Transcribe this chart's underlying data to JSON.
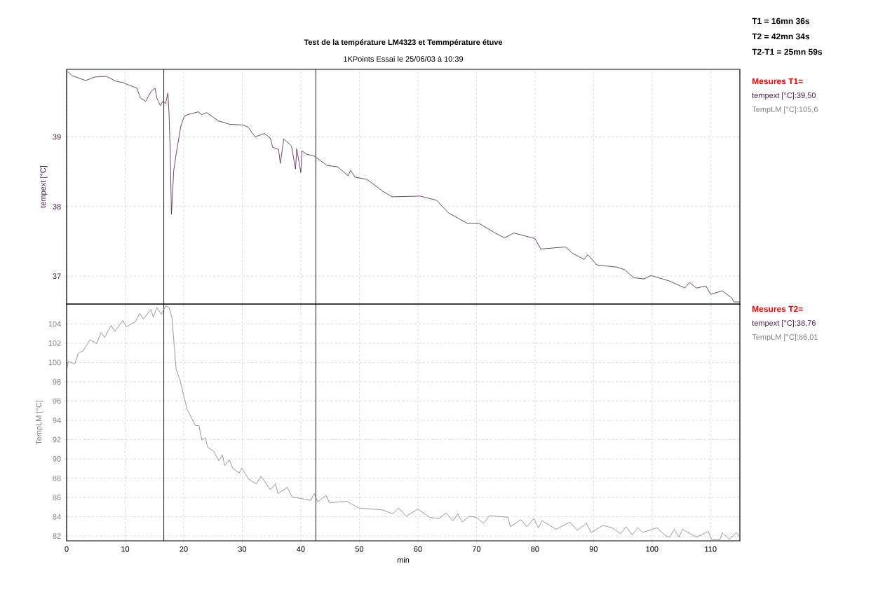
{
  "chart_data": [
    {
      "type": "line",
      "title": "Test de la température LM4323 et Temmpérature étuve",
      "subtitle": "1KPoints  Essai le 25/06/03 à 10:39",
      "ylabel": "tempext [°C]",
      "xlim": [
        0,
        115
      ],
      "xticks": [
        0,
        10,
        20,
        30,
        40,
        50,
        60,
        70,
        80,
        90,
        100,
        110
      ],
      "ylim": [
        36.6,
        39.97
      ],
      "yticks": [
        37,
        38,
        39
      ],
      "grid": true,
      "tick_labels": "y",
      "series": [
        {
          "color": "#4a1a48",
          "x": [
            0.16,
            0.9,
            3.25,
            4.8,
            6.8,
            8.4,
            9.6,
            12.0,
            12.6,
            13.5,
            14.4,
            15.1,
            15.4,
            16.0,
            16.4,
            16.9,
            17.3,
            17.5,
            17.7,
            17.9,
            18.3,
            18.7,
            19.5,
            20.1,
            20.7,
            22.5,
            23.1,
            23.9,
            25.9,
            27.9,
            30.2,
            31.0,
            32.2,
            33.8,
            34.8,
            35.2,
            36.2,
            36.5,
            37.1,
            38.4,
            39.1,
            39.3,
            40.0,
            40.2,
            41.0,
            42.2,
            44.5,
            46.3,
            48.1,
            48.5,
            49.3,
            51.3,
            54.0,
            55.6,
            60.4,
            63.2,
            65.2,
            68.4,
            70.4,
            73.2,
            74.8,
            76.4,
            80.0,
            81.0,
            85.2,
            86.4,
            88.4,
            89.0,
            90.6,
            94.0,
            95.4,
            96.8,
            98.6,
            99.8,
            103.0,
            105.6,
            106.4,
            107.6,
            109.2,
            110.0,
            112.0,
            113.6,
            114.0,
            115
          ],
          "values": [
            39.94,
            39.88,
            39.81,
            39.86,
            39.87,
            39.8,
            39.78,
            39.7,
            39.56,
            39.51,
            39.65,
            39.7,
            39.56,
            39.45,
            39.51,
            39.48,
            39.63,
            39.32,
            38.78,
            37.89,
            38.52,
            38.75,
            39.15,
            39.3,
            39.32,
            39.36,
            39.32,
            39.35,
            39.23,
            39.18,
            39.17,
            39.14,
            39.0,
            39.05,
            38.98,
            38.85,
            38.82,
            38.62,
            38.97,
            38.87,
            38.54,
            38.83,
            38.49,
            38.8,
            38.75,
            38.73,
            38.59,
            38.57,
            38.44,
            38.52,
            38.42,
            38.39,
            38.22,
            38.14,
            38.15,
            38.09,
            37.91,
            37.76,
            37.76,
            37.62,
            37.55,
            37.62,
            37.54,
            37.39,
            37.42,
            37.33,
            37.24,
            37.31,
            37.16,
            37.13,
            37.09,
            36.98,
            36.96,
            37.01,
            36.93,
            36.83,
            36.91,
            36.83,
            36.86,
            36.74,
            36.79,
            36.69,
            36.63,
            36.63
          ]
        }
      ],
      "ref_lines": [
        {
          "axis": "x",
          "value": 16.6,
          "color": "#000000"
        },
        {
          "axis": "x",
          "value": 42.57,
          "color": "#000000"
        }
      ],
      "annotations": [
        "T1 = 16mn 36s",
        "T2 = 42mn 34s",
        "T2-T1 = 25mn 59s",
        "Mesures T1=",
        "tempext [°C]:39,50",
        "TempLM [°C]:105,6"
      ]
    },
    {
      "type": "line",
      "xlabel": "min",
      "ylabel": "TempLM [°C]",
      "xlim": [
        0,
        115
      ],
      "xticks": [
        0,
        10,
        20,
        30,
        40,
        50,
        60,
        70,
        80,
        90,
        100,
        110
      ],
      "ylim": [
        81.5,
        106.06
      ],
      "yticks": [
        82,
        84,
        86,
        88,
        90,
        92,
        94,
        96,
        98,
        100,
        102,
        104
      ],
      "grid": true,
      "series": [
        {
          "color": "#808080",
          "x": [
            0.1,
            0.3,
            1.4,
            2.0,
            2.8,
            4.0,
            5.1,
            5.9,
            6.5,
            7.6,
            8.2,
            9.6,
            10.2,
            11.7,
            12.5,
            13.1,
            14.4,
            14.8,
            15.4,
            16.2,
            16.9,
            17.5,
            18.0,
            18.7,
            19.3,
            20.6,
            22.0,
            22.6,
            23.1,
            23.7,
            24.1,
            25.1,
            26.0,
            26.6,
            27.0,
            27.8,
            28.4,
            29.5,
            29.9,
            31.1,
            32.4,
            33.2,
            34.8,
            35.7,
            36.1,
            37.7,
            38.5,
            40.0,
            41.7,
            42.3,
            42.9,
            44.3,
            44.9,
            47.9,
            49.9,
            52.0,
            54.0,
            55.7,
            56.7,
            58.0,
            60.0,
            62.0,
            63.6,
            64.8,
            66.0,
            66.8,
            67.6,
            68.8,
            70.0,
            71.2,
            72.2,
            73.2,
            75.4,
            75.8,
            77.6,
            78.6,
            79.8,
            80.6,
            81.2,
            83.6,
            86.0,
            87.2,
            88.8,
            89.6,
            91.6,
            93.2,
            94.6,
            95.6,
            96.6,
            97.6,
            98.4,
            100.8,
            102.4,
            103.0,
            103.8,
            104.6,
            105.2,
            107.6,
            109.6,
            110.2,
            111.6,
            112.0,
            113.2,
            114.4,
            115
          ],
          "values": [
            99.46,
            100.1,
            99.84,
            100.97,
            101.2,
            102.35,
            101.97,
            103.1,
            102.6,
            103.85,
            103.2,
            104.35,
            103.7,
            104.2,
            105.1,
            104.5,
            105.5,
            104.7,
            105.7,
            105.0,
            105.85,
            105.7,
            104.6,
            99.3,
            98.3,
            95.1,
            93.45,
            93.45,
            91.95,
            92.2,
            91.2,
            90.8,
            89.8,
            90.4,
            89.3,
            89.9,
            89.0,
            88.55,
            89.05,
            87.9,
            87.4,
            88.2,
            86.8,
            87.4,
            86.4,
            87.05,
            86.05,
            85.9,
            85.7,
            86.4,
            85.55,
            86.2,
            85.45,
            85.6,
            84.9,
            84.8,
            84.7,
            84.3,
            84.9,
            84.06,
            84.8,
            83.94,
            83.8,
            84.4,
            83.57,
            84.3,
            83.45,
            84.06,
            83.94,
            83.3,
            84.1,
            84.06,
            83.94,
            82.97,
            83.7,
            82.97,
            83.8,
            82.85,
            83.6,
            82.7,
            83.45,
            82.6,
            83.3,
            82.36,
            83.1,
            82.85,
            82.24,
            82.97,
            82.12,
            82.85,
            82.36,
            82.85,
            82.0,
            81.88,
            82.7,
            81.88,
            82.7,
            81.88,
            82.48,
            81.64,
            81.64,
            82.36,
            81.64,
            82.36,
            81.88
          ]
        }
      ],
      "ref_lines": [
        {
          "axis": "x",
          "value": 16.6,
          "color": "#000000"
        },
        {
          "axis": "x",
          "value": 42.57,
          "color": "#000000"
        }
      ],
      "annotations": [
        "Mesures T2=",
        "tempext [°C]:38,76",
        "TempLM [°C]:86,01"
      ]
    }
  ]
}
